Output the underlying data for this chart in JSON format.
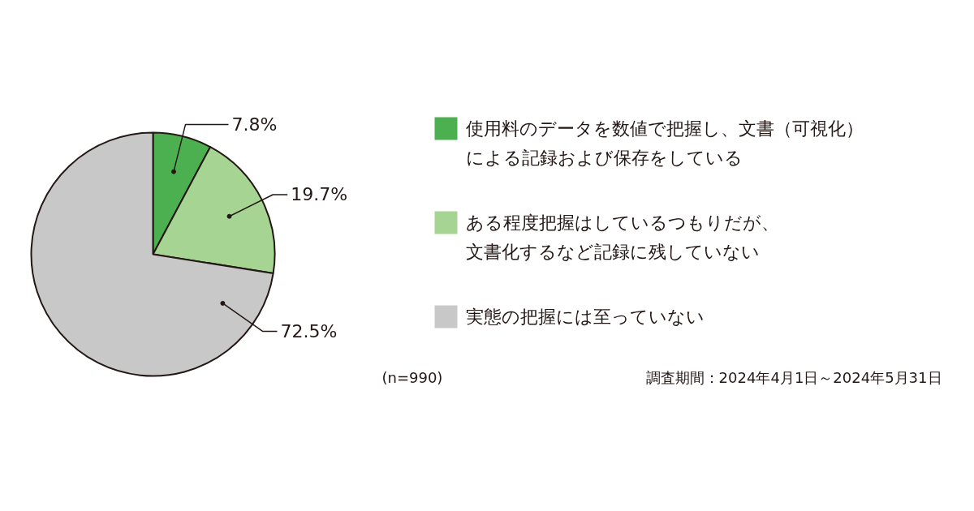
{
  "chart_data": {
    "type": "pie",
    "categories": [
      "使用料のデータを数値で把握し、文書（可視化）による記録および保存をしている",
      "ある程度把握はしているつもりだが、文書化するなど記録に残していない",
      "実態の把握には至っていない"
    ],
    "values": [
      7.8,
      19.7,
      72.5
    ],
    "colors": [
      "#4cb050",
      "#a6d492",
      "#c8c8c8"
    ],
    "value_labels": [
      "7.8%",
      "19.7%",
      "72.5%"
    ],
    "legend": "right",
    "annotations": [
      "(n=990)",
      "調査期間：2024年4月1日～2024年5月31日"
    ]
  }
}
